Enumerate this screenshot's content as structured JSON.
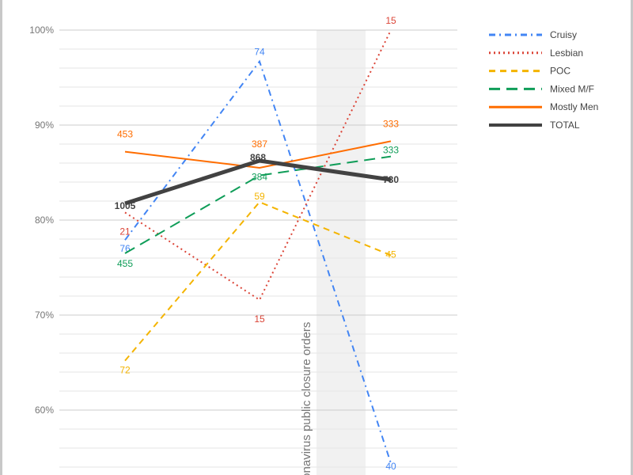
{
  "chart_data": {
    "type": "line",
    "title": "",
    "xlabel": "",
    "ylabel": "",
    "categories": [
      "",
      "",
      ""
    ],
    "ylim": [
      54,
      100
    ],
    "y_ticks": [
      "60%",
      "70%",
      "80%",
      "90%",
      "100%"
    ],
    "y_tick_values": [
      60,
      70,
      80,
      90,
      100
    ],
    "minor_grid_step": 2,
    "grid": true,
    "legend_position": "top-right",
    "annotation": {
      "text": "Coronavirus public closure orders",
      "between_categories": [
        1,
        2
      ],
      "color": "#f1f1f1"
    },
    "series": [
      {
        "name": "Cruisy",
        "color": "#4285f4",
        "style": "dash-dot",
        "values": [
          77.9,
          96.7,
          54.4
        ],
        "labels": [
          "76",
          "74",
          "40"
        ]
      },
      {
        "name": "Lesbian",
        "color": "#db4437",
        "style": "dotted",
        "values": [
          80.8,
          71.6,
          100
        ],
        "labels": [
          "21",
          "15",
          "15"
        ]
      },
      {
        "name": "POC",
        "color": "#f4b400",
        "style": "dashed",
        "values": [
          65.2,
          81.9,
          76.3
        ],
        "labels": [
          "72",
          "59",
          "45"
        ]
      },
      {
        "name": "Mixed M/F",
        "color": "#0f9d58",
        "style": "long-dash",
        "values": [
          76.5,
          84.7,
          86.7
        ],
        "labels": [
          "455",
          "384",
          "333"
        ]
      },
      {
        "name": "Mostly Men",
        "color": "#ff6d00",
        "style": "solid",
        "values": [
          87.2,
          85.5,
          88.3
        ],
        "labels": [
          "453",
          "387",
          "333"
        ]
      },
      {
        "name": "TOTAL",
        "color": "#424242",
        "style": "thick",
        "values": [
          81.75,
          86.25,
          84.25
        ],
        "labels": [
          "1005",
          "868",
          "730"
        ]
      }
    ]
  }
}
